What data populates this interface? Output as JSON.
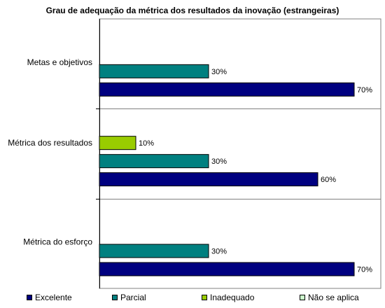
{
  "chart_data": {
    "type": "bar",
    "orientation": "horizontal",
    "title": "Grau de adequação da métrica dos resultados da inovação (estrangeiras)",
    "categories": [
      "Metas e objetivos",
      "Métrica dos resultados",
      "Métrica do esforço"
    ],
    "series": [
      {
        "name": "Excelente",
        "color": "#000080",
        "values": [
          70,
          60,
          70
        ],
        "labels": [
          "70%",
          "60%",
          "70%"
        ]
      },
      {
        "name": "Parcial",
        "color": "#008080",
        "values": [
          30,
          30,
          30
        ],
        "labels": [
          "30%",
          "30%",
          "30%"
        ]
      },
      {
        "name": "Inadequado",
        "color": "#99CC00",
        "values": [
          0,
          10,
          0
        ],
        "labels": [
          "",
          "10%",
          ""
        ]
      },
      {
        "name": "Não se aplica",
        "color": "#CCFFCC",
        "values": [
          0,
          0,
          0
        ],
        "labels": [
          "",
          "",
          ""
        ]
      }
    ],
    "xlim": [
      0,
      70
    ],
    "unit": "%",
    "grid": "category separators",
    "legend_position": "bottom"
  }
}
